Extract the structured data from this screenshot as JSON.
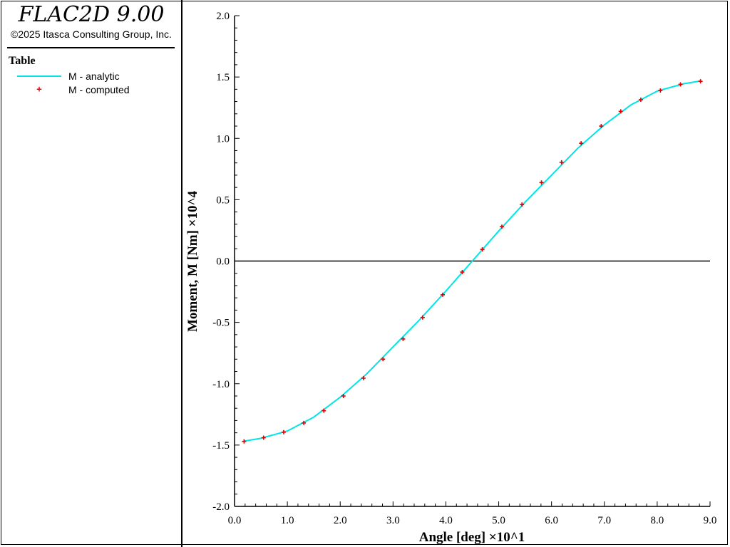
{
  "app": {
    "title": "FLAC2D 9.00",
    "copyright": "©2025 Itasca Consulting Group, Inc."
  },
  "legend": {
    "heading": "Table",
    "items": [
      {
        "label": "M - analytic",
        "kind": "line",
        "color": "#00e5e5"
      },
      {
        "label": "M - computed",
        "kind": "marker",
        "color": "#e00000",
        "marker": "+"
      }
    ]
  },
  "chart_data": {
    "type": "line",
    "xlabel": "Angle [deg] ×10^1",
    "ylabel": "Moment, M [Nm] ×10^4",
    "xlim": [
      0.0,
      9.0
    ],
    "ylim": [
      -2.0,
      2.0
    ],
    "x_ticks": [
      "0.0",
      "1.0",
      "2.0",
      "3.0",
      "4.0",
      "5.0",
      "6.0",
      "7.0",
      "8.0",
      "9.0"
    ],
    "y_ticks": [
      "-2.0",
      "-1.5",
      "-1.0",
      "-0.5",
      "0.0",
      "0.5",
      "1.0",
      "1.5",
      "2.0"
    ],
    "grid": false,
    "zero_line": true,
    "series": [
      {
        "name": "M - analytic",
        "style": "line",
        "color": "#00e5e5",
        "x": [
          0.18,
          0.5,
          1.0,
          1.5,
          2.0,
          2.5,
          3.0,
          3.5,
          4.0,
          4.5,
          5.0,
          5.5,
          6.0,
          6.5,
          7.0,
          7.5,
          8.0,
          8.5,
          8.82
        ],
        "y": [
          -1.468,
          -1.445,
          -1.385,
          -1.272,
          -1.11,
          -0.92,
          -0.7,
          -0.48,
          -0.245,
          0.0,
          0.245,
          0.48,
          0.7,
          0.92,
          1.11,
          1.272,
          1.385,
          1.445,
          1.468
        ]
      },
      {
        "name": "M - computed",
        "style": "marker",
        "color": "#e00000",
        "x": [
          0.18,
          0.55,
          0.93,
          1.31,
          1.69,
          2.06,
          2.44,
          2.81,
          3.19,
          3.56,
          3.94,
          4.31,
          4.69,
          5.06,
          5.44,
          5.81,
          6.19,
          6.56,
          6.94,
          7.31,
          7.69,
          8.06,
          8.44,
          8.82
        ],
        "y": [
          -1.47,
          -1.44,
          -1.395,
          -1.32,
          -1.22,
          -1.1,
          -0.955,
          -0.8,
          -0.635,
          -0.46,
          -0.275,
          -0.09,
          0.095,
          0.28,
          0.46,
          0.64,
          0.805,
          0.96,
          1.1,
          1.22,
          1.315,
          1.39,
          1.44,
          1.465
        ]
      }
    ]
  }
}
